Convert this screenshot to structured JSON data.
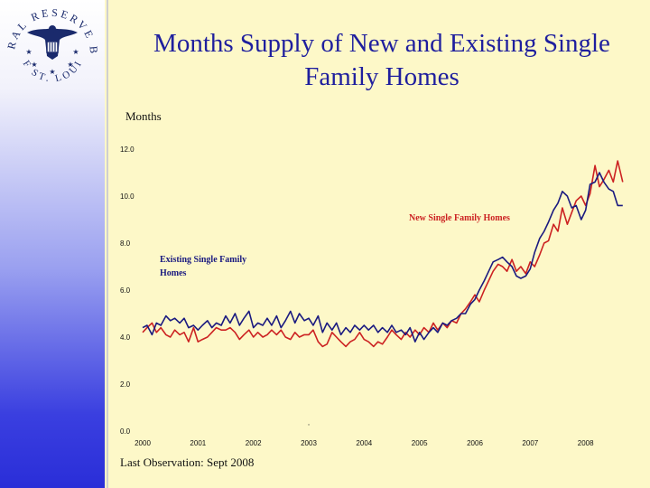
{
  "seal": {
    "top_text": "FEDERAL RESERVE BANK",
    "bottom_text": "OF ST. LOUIS"
  },
  "title_lines": [
    "Months Supply of New and Existing Single",
    "Family Homes"
  ],
  "footnote": "Last Observation: Sept 2008",
  "chart_data": {
    "type": "line",
    "title": "Months Supply of New and Existing Single Family Homes",
    "ylabel": "Months",
    "xlabel": "",
    "ylim": [
      0,
      12
    ],
    "xlim": [
      2000,
      2009
    ],
    "y_ticks": [
      "0.0",
      "2.0",
      "4.0",
      "6.0",
      "8.0",
      "10.0",
      "12.0"
    ],
    "x_ticks": [
      "2000",
      "2001",
      "2002",
      "2003",
      "2004",
      "2005",
      "2006",
      "2007",
      "2008"
    ],
    "grid": false,
    "series": [
      {
        "name": "Existing Single Family Homes",
        "label_lines": [
          "Existing Single Family",
          "Homes"
        ],
        "color": "#1a1a80",
        "points": [
          [
            2000.0,
            4.4
          ],
          [
            2000.08,
            4.5
          ],
          [
            2000.17,
            4.1
          ],
          [
            2000.25,
            4.6
          ],
          [
            2000.33,
            4.5
          ],
          [
            2000.42,
            4.9
          ],
          [
            2000.5,
            4.7
          ],
          [
            2000.58,
            4.8
          ],
          [
            2000.67,
            4.6
          ],
          [
            2000.75,
            4.8
          ],
          [
            2000.83,
            4.4
          ],
          [
            2000.92,
            4.5
          ],
          [
            2001.0,
            4.3
          ],
          [
            2001.08,
            4.5
          ],
          [
            2001.17,
            4.7
          ],
          [
            2001.25,
            4.4
          ],
          [
            2001.33,
            4.6
          ],
          [
            2001.42,
            4.5
          ],
          [
            2001.5,
            4.9
          ],
          [
            2001.58,
            4.6
          ],
          [
            2001.67,
            5.0
          ],
          [
            2001.75,
            4.5
          ],
          [
            2001.83,
            4.8
          ],
          [
            2001.92,
            5.1
          ],
          [
            2002.0,
            4.4
          ],
          [
            2002.08,
            4.6
          ],
          [
            2002.17,
            4.5
          ],
          [
            2002.25,
            4.8
          ],
          [
            2002.33,
            4.5
          ],
          [
            2002.42,
            4.9
          ],
          [
            2002.5,
            4.4
          ],
          [
            2002.58,
            4.7
          ],
          [
            2002.67,
            5.1
          ],
          [
            2002.75,
            4.6
          ],
          [
            2002.83,
            5.0
          ],
          [
            2002.92,
            4.7
          ],
          [
            2003.0,
            4.8
          ],
          [
            2003.08,
            4.5
          ],
          [
            2003.17,
            4.9
          ],
          [
            2003.25,
            4.2
          ],
          [
            2003.33,
            4.6
          ],
          [
            2003.42,
            4.3
          ],
          [
            2003.5,
            4.6
          ],
          [
            2003.58,
            4.1
          ],
          [
            2003.67,
            4.4
          ],
          [
            2003.75,
            4.2
          ],
          [
            2003.83,
            4.5
          ],
          [
            2003.92,
            4.3
          ],
          [
            2004.0,
            4.5
          ],
          [
            2004.08,
            4.3
          ],
          [
            2004.17,
            4.5
          ],
          [
            2004.25,
            4.2
          ],
          [
            2004.33,
            4.4
          ],
          [
            2004.42,
            4.2
          ],
          [
            2004.5,
            4.5
          ],
          [
            2004.58,
            4.2
          ],
          [
            2004.67,
            4.3
          ],
          [
            2004.75,
            4.1
          ],
          [
            2004.83,
            4.4
          ],
          [
            2004.92,
            3.8
          ],
          [
            2005.0,
            4.2
          ],
          [
            2005.08,
            3.9
          ],
          [
            2005.17,
            4.2
          ],
          [
            2005.25,
            4.4
          ],
          [
            2005.33,
            4.2
          ],
          [
            2005.42,
            4.6
          ],
          [
            2005.5,
            4.5
          ],
          [
            2005.58,
            4.7
          ],
          [
            2005.67,
            4.8
          ],
          [
            2005.75,
            5.0
          ],
          [
            2005.83,
            5.0
          ],
          [
            2005.92,
            5.4
          ],
          [
            2006.0,
            5.6
          ],
          [
            2006.08,
            6.0
          ],
          [
            2006.17,
            6.4
          ],
          [
            2006.25,
            6.8
          ],
          [
            2006.33,
            7.2
          ],
          [
            2006.42,
            7.3
          ],
          [
            2006.5,
            7.4
          ],
          [
            2006.58,
            7.2
          ],
          [
            2006.67,
            7.0
          ],
          [
            2006.75,
            6.6
          ],
          [
            2006.83,
            6.5
          ],
          [
            2006.92,
            6.6
          ],
          [
            2007.0,
            6.9
          ],
          [
            2007.08,
            7.6
          ],
          [
            2007.17,
            8.2
          ],
          [
            2007.25,
            8.5
          ],
          [
            2007.33,
            8.9
          ],
          [
            2007.42,
            9.4
          ],
          [
            2007.5,
            9.7
          ],
          [
            2007.58,
            10.2
          ],
          [
            2007.67,
            10.0
          ],
          [
            2007.75,
            9.5
          ],
          [
            2007.83,
            9.6
          ],
          [
            2007.92,
            9.0
          ],
          [
            2008.0,
            9.4
          ],
          [
            2008.08,
            10.5
          ],
          [
            2008.17,
            10.6
          ],
          [
            2008.25,
            11.0
          ],
          [
            2008.33,
            10.6
          ],
          [
            2008.42,
            10.3
          ],
          [
            2008.5,
            10.2
          ],
          [
            2008.58,
            9.6
          ],
          [
            2008.67,
            9.6
          ]
        ]
      },
      {
        "name": "New Single Family Homes",
        "label_lines": [
          "New Single Family Homes"
        ],
        "color": "#cc2222",
        "points": [
          [
            2000.0,
            4.2
          ],
          [
            2000.08,
            4.4
          ],
          [
            2000.17,
            4.6
          ],
          [
            2000.25,
            4.2
          ],
          [
            2000.33,
            4.4
          ],
          [
            2000.42,
            4.1
          ],
          [
            2000.5,
            4.0
          ],
          [
            2000.58,
            4.3
          ],
          [
            2000.67,
            4.1
          ],
          [
            2000.75,
            4.2
          ],
          [
            2000.83,
            3.8
          ],
          [
            2000.92,
            4.4
          ],
          [
            2001.0,
            3.8
          ],
          [
            2001.08,
            3.9
          ],
          [
            2001.17,
            4.0
          ],
          [
            2001.25,
            4.2
          ],
          [
            2001.33,
            4.4
          ],
          [
            2001.42,
            4.3
          ],
          [
            2001.5,
            4.3
          ],
          [
            2001.58,
            4.4
          ],
          [
            2001.67,
            4.2
          ],
          [
            2001.75,
            3.9
          ],
          [
            2001.83,
            4.1
          ],
          [
            2001.92,
            4.3
          ],
          [
            2002.0,
            4.0
          ],
          [
            2002.08,
            4.2
          ],
          [
            2002.17,
            4.0
          ],
          [
            2002.25,
            4.1
          ],
          [
            2002.33,
            4.3
          ],
          [
            2002.42,
            4.1
          ],
          [
            2002.5,
            4.3
          ],
          [
            2002.58,
            4.0
          ],
          [
            2002.67,
            3.9
          ],
          [
            2002.75,
            4.2
          ],
          [
            2002.83,
            4.0
          ],
          [
            2002.92,
            4.1
          ],
          [
            2003.0,
            4.1
          ],
          [
            2003.08,
            4.3
          ],
          [
            2003.17,
            3.8
          ],
          [
            2003.25,
            3.6
          ],
          [
            2003.33,
            3.7
          ],
          [
            2003.42,
            4.2
          ],
          [
            2003.5,
            4.0
          ],
          [
            2003.58,
            3.8
          ],
          [
            2003.67,
            3.6
          ],
          [
            2003.75,
            3.8
          ],
          [
            2003.83,
            3.9
          ],
          [
            2003.92,
            4.2
          ],
          [
            2004.0,
            3.9
          ],
          [
            2004.08,
            3.8
          ],
          [
            2004.17,
            3.6
          ],
          [
            2004.25,
            3.8
          ],
          [
            2004.33,
            3.7
          ],
          [
            2004.42,
            4.0
          ],
          [
            2004.5,
            4.3
          ],
          [
            2004.58,
            4.1
          ],
          [
            2004.67,
            3.9
          ],
          [
            2004.75,
            4.2
          ],
          [
            2004.83,
            4.0
          ],
          [
            2004.92,
            4.3
          ],
          [
            2005.0,
            4.1
          ],
          [
            2005.08,
            4.4
          ],
          [
            2005.17,
            4.2
          ],
          [
            2005.25,
            4.6
          ],
          [
            2005.33,
            4.3
          ],
          [
            2005.42,
            4.6
          ],
          [
            2005.5,
            4.4
          ],
          [
            2005.58,
            4.7
          ],
          [
            2005.67,
            4.6
          ],
          [
            2005.75,
            5.0
          ],
          [
            2005.83,
            5.2
          ],
          [
            2005.92,
            5.5
          ],
          [
            2006.0,
            5.8
          ],
          [
            2006.08,
            5.5
          ],
          [
            2006.17,
            6.0
          ],
          [
            2006.25,
            6.4
          ],
          [
            2006.33,
            6.8
          ],
          [
            2006.42,
            7.1
          ],
          [
            2006.5,
            7.0
          ],
          [
            2006.58,
            6.8
          ],
          [
            2006.67,
            7.3
          ],
          [
            2006.75,
            6.8
          ],
          [
            2006.83,
            7.0
          ],
          [
            2006.92,
            6.7
          ],
          [
            2007.0,
            7.2
          ],
          [
            2007.08,
            7.0
          ],
          [
            2007.17,
            7.5
          ],
          [
            2007.25,
            8.0
          ],
          [
            2007.33,
            8.1
          ],
          [
            2007.42,
            8.8
          ],
          [
            2007.5,
            8.5
          ],
          [
            2007.58,
            9.5
          ],
          [
            2007.67,
            8.8
          ],
          [
            2007.75,
            9.3
          ],
          [
            2007.83,
            9.8
          ],
          [
            2007.92,
            10.0
          ],
          [
            2008.0,
            9.6
          ],
          [
            2008.08,
            10.1
          ],
          [
            2008.17,
            11.3
          ],
          [
            2008.25,
            10.4
          ],
          [
            2008.33,
            10.7
          ],
          [
            2008.42,
            11.1
          ],
          [
            2008.5,
            10.6
          ],
          [
            2008.58,
            11.5
          ],
          [
            2008.67,
            10.6
          ]
        ]
      }
    ],
    "stray_mark": {
      "x": 2003.0,
      "y": 0.25,
      "text": "."
    }
  }
}
